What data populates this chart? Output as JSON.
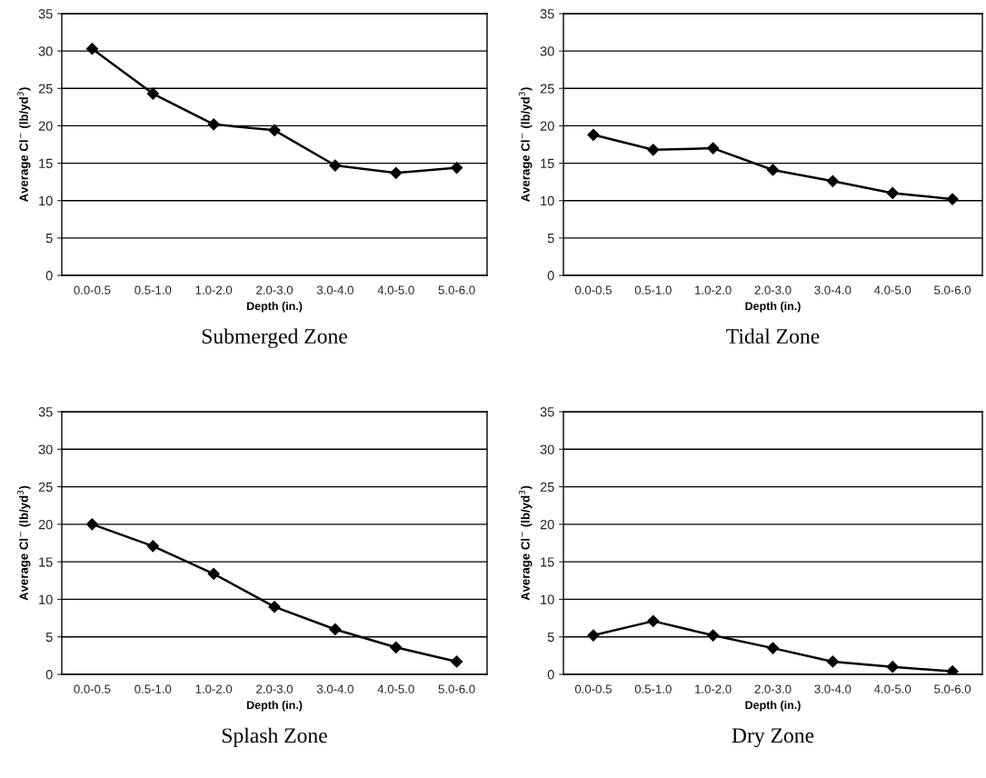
{
  "chart_data": [
    {
      "type": "line",
      "title": "Submerged Zone",
      "xlabel": "Depth (in.)",
      "ylabel": "Average Cl$^{−}$ (lb/yd$^{3}$)",
      "categories": [
        "0.0-0.5",
        "0.5-1.0",
        "1.0-2.0",
        "2.0-3.0",
        "3.0-4.0",
        "4.0-5.0",
        "5.0-6.0"
      ],
      "series": [
        {
          "color": "#000000",
          "values": [
            30.3,
            24.3,
            20.2,
            19.4,
            14.7,
            13.7,
            14.4
          ]
        }
      ],
      "ylim": [
        0,
        35
      ],
      "yticks": [
        0,
        5,
        10,
        15,
        20,
        25,
        30,
        35
      ],
      "grid": "y",
      "marker": "diamond",
      "line_style": "solid"
    },
    {
      "type": "line",
      "title": "Tidal Zone",
      "xlabel": "Depth (in.)",
      "ylabel": "Average Cl$^{−}$ (lb/yd$^{3}$)",
      "categories": [
        "0.0-0.5",
        "0.5-1.0",
        "1.0-2.0",
        "2.0-3.0",
        "3.0-4.0",
        "4.0-5.0",
        "5.0-6.0"
      ],
      "series": [
        {
          "color": "#000000",
          "values": [
            18.8,
            16.8,
            17.0,
            14.1,
            12.6,
            11.0,
            10.2
          ]
        }
      ],
      "ylim": [
        0,
        35
      ],
      "yticks": [
        0,
        5,
        10,
        15,
        20,
        25,
        30,
        35
      ],
      "grid": "y",
      "marker": "diamond",
      "line_style": "solid"
    },
    {
      "type": "line",
      "title": "Splash Zone",
      "xlabel": "Depth (in.)",
      "ylabel": "Average Cl$^{−}$ (lb/yd$^{3}$)",
      "categories": [
        "0.0-0.5",
        "0.5-1.0",
        "1.0-2.0",
        "2.0-3.0",
        "3.0-4.0",
        "4.0-5.0",
        "5.0-6.0"
      ],
      "series": [
        {
          "color": "#000000",
          "values": [
            20.0,
            17.1,
            13.4,
            9.0,
            6.0,
            3.6,
            1.7
          ]
        }
      ],
      "ylim": [
        0,
        35
      ],
      "yticks": [
        0,
        5,
        10,
        15,
        20,
        25,
        30,
        35
      ],
      "grid": "y",
      "marker": "diamond",
      "line_style": "solid"
    },
    {
      "type": "line",
      "title": "Dry Zone",
      "xlabel": "Depth (in.)",
      "ylabel": "Average Cl$^{−}$ (lb/yd$^{3}$)",
      "categories": [
        "0.0-0.5",
        "0.5-1.0",
        "1.0-2.0",
        "2.0-3.0",
        "3.0-4.0",
        "4.0-5.0",
        "5.0-6.0"
      ],
      "series": [
        {
          "color": "#000000",
          "values": [
            5.2,
            7.1,
            5.2,
            3.5,
            1.7,
            1.0,
            0.4
          ]
        }
      ],
      "ylim": [
        0,
        35
      ],
      "yticks": [
        0,
        5,
        10,
        15,
        20,
        25,
        30,
        35
      ],
      "grid": "y",
      "marker": "diamond",
      "line_style": "solid"
    }
  ]
}
